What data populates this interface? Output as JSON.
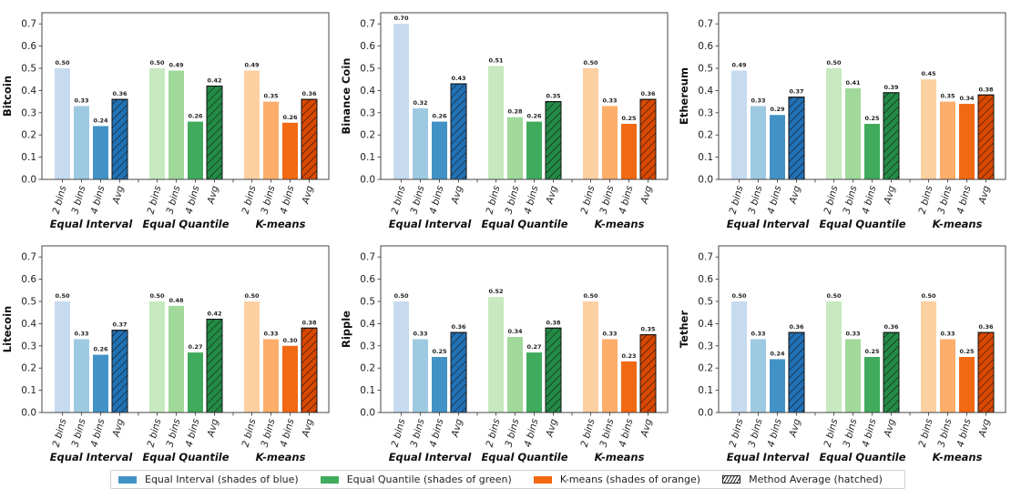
{
  "chart_data": [
    {
      "type": "bar",
      "ylabel": "Bitcoin",
      "ylim": [
        0,
        0.75
      ],
      "yticks": [
        "0.0",
        "0.1",
        "0.2",
        "0.3",
        "0.4",
        "0.5",
        "0.6",
        "0.7"
      ],
      "categories": [
        "2 bins",
        "3 bins",
        "4 bins",
        "Avg"
      ],
      "groups": [
        "Equal Interval",
        "Equal Quantile",
        "K-means"
      ],
      "series": [
        {
          "name": "Equal Interval",
          "values": [
            0.5,
            0.33,
            0.24,
            0.36
          ],
          "labels": [
            "0.50",
            "0.33",
            "0.24",
            "0.36"
          ]
        },
        {
          "name": "Equal Quantile",
          "values": [
            0.5,
            0.49,
            0.26,
            0.42
          ],
          "labels": [
            "0.50",
            "0.49",
            "0.26",
            "0.42"
          ]
        },
        {
          "name": "K-means",
          "values": [
            0.49,
            0.35,
            0.255,
            0.36
          ],
          "labels": [
            "0.49",
            "0.35",
            "0.26",
            "0.36"
          ]
        }
      ]
    },
    {
      "type": "bar",
      "ylabel": "Binance Coin",
      "ylim": [
        0,
        0.75
      ],
      "yticks": [
        "0.0",
        "0.1",
        "0.2",
        "0.3",
        "0.4",
        "0.5",
        "0.6",
        "0.7"
      ],
      "categories": [
        "2 bins",
        "3 bins",
        "4 bins",
        "Avg"
      ],
      "groups": [
        "Equal Interval",
        "Equal Quantile",
        "K-means"
      ],
      "series": [
        {
          "name": "Equal Interval",
          "values": [
            0.7,
            0.32,
            0.26,
            0.43
          ],
          "labels": [
            "0.70",
            "0.32",
            "0.26",
            "0.43"
          ]
        },
        {
          "name": "Equal Quantile",
          "values": [
            0.51,
            0.28,
            0.26,
            0.35
          ],
          "labels": [
            "0.51",
            "0.28",
            "0.26",
            "0.35"
          ]
        },
        {
          "name": "K-means",
          "values": [
            0.5,
            0.33,
            0.25,
            0.36
          ],
          "labels": [
            "0.50",
            "0.33",
            "0.25",
            "0.36"
          ]
        }
      ]
    },
    {
      "type": "bar",
      "ylabel": "Ethereum",
      "ylim": [
        0,
        0.75
      ],
      "yticks": [
        "0.0",
        "0.1",
        "0.2",
        "0.3",
        "0.4",
        "0.5",
        "0.6",
        "0.7"
      ],
      "categories": [
        "2 bins",
        "3 bins",
        "4 bins",
        "Avg"
      ],
      "groups": [
        "Equal Interval",
        "Equal Quantile",
        "K-means"
      ],
      "series": [
        {
          "name": "Equal Interval",
          "values": [
            0.49,
            0.33,
            0.29,
            0.37
          ],
          "labels": [
            "0.49",
            "0.33",
            "0.29",
            "0.37"
          ]
        },
        {
          "name": "Equal Quantile",
          "values": [
            0.5,
            0.41,
            0.25,
            0.39
          ],
          "labels": [
            "0.50",
            "0.41",
            "0.25",
            "0.39"
          ]
        },
        {
          "name": "K-means",
          "values": [
            0.45,
            0.35,
            0.34,
            0.38
          ],
          "labels": [
            "0.45",
            "0.35",
            "0.34",
            "0.38"
          ]
        }
      ]
    },
    {
      "type": "bar",
      "ylabel": "Litecoin",
      "ylim": [
        0,
        0.75
      ],
      "yticks": [
        "0.0",
        "0.1",
        "0.2",
        "0.3",
        "0.4",
        "0.5",
        "0.6",
        "0.7"
      ],
      "categories": [
        "2 bins",
        "3 bins",
        "4 bins",
        "Avg"
      ],
      "groups": [
        "Equal Interval",
        "Equal Quantile",
        "K-means"
      ],
      "series": [
        {
          "name": "Equal Interval",
          "values": [
            0.5,
            0.33,
            0.26,
            0.37
          ],
          "labels": [
            "0.50",
            "0.33",
            "0.26",
            "0.37"
          ]
        },
        {
          "name": "Equal Quantile",
          "values": [
            0.5,
            0.48,
            0.27,
            0.42
          ],
          "labels": [
            "0.50",
            "0.48",
            "0.27",
            "0.42"
          ]
        },
        {
          "name": "K-means",
          "values": [
            0.5,
            0.33,
            0.3,
            0.38
          ],
          "labels": [
            "0.50",
            "0.33",
            "0.30",
            "0.38"
          ]
        }
      ]
    },
    {
      "type": "bar",
      "ylabel": "Ripple",
      "ylim": [
        0,
        0.75
      ],
      "yticks": [
        "0.0",
        "0.1",
        "0.2",
        "0.3",
        "0.4",
        "0.5",
        "0.6",
        "0.7"
      ],
      "categories": [
        "2 bins",
        "3 bins",
        "4 bins",
        "Avg"
      ],
      "groups": [
        "Equal Interval",
        "Equal Quantile",
        "K-means"
      ],
      "series": [
        {
          "name": "Equal Interval",
          "values": [
            0.5,
            0.33,
            0.25,
            0.36
          ],
          "labels": [
            "0.50",
            "0.33",
            "0.25",
            "0.36"
          ]
        },
        {
          "name": "Equal Quantile",
          "values": [
            0.52,
            0.34,
            0.27,
            0.38
          ],
          "labels": [
            "0.52",
            "0.34",
            "0.27",
            "0.38"
          ]
        },
        {
          "name": "K-means",
          "values": [
            0.5,
            0.33,
            0.23,
            0.35
          ],
          "labels": [
            "0.50",
            "0.33",
            "0.23",
            "0.35"
          ]
        }
      ]
    },
    {
      "type": "bar",
      "ylabel": "Tether",
      "ylim": [
        0,
        0.75
      ],
      "yticks": [
        "0.0",
        "0.1",
        "0.2",
        "0.3",
        "0.4",
        "0.5",
        "0.6",
        "0.7"
      ],
      "categories": [
        "2 bins",
        "3 bins",
        "4 bins",
        "Avg"
      ],
      "groups": [
        "Equal Interval",
        "Equal Quantile",
        "K-means"
      ],
      "series": [
        {
          "name": "Equal Interval",
          "values": [
            0.5,
            0.33,
            0.24,
            0.36
          ],
          "labels": [
            "0.50",
            "0.33",
            "0.24",
            "0.36"
          ]
        },
        {
          "name": "Equal Quantile",
          "values": [
            0.5,
            0.33,
            0.25,
            0.36
          ],
          "labels": [
            "0.50",
            "0.33",
            "0.25",
            "0.36"
          ]
        },
        {
          "name": "K-means",
          "values": [
            0.5,
            0.33,
            0.25,
            0.36
          ],
          "labels": [
            "0.50",
            "0.33",
            "0.25",
            "0.36"
          ]
        }
      ]
    }
  ],
  "colors": {
    "Equal Interval": [
      "#c6dbef",
      "#9ecae1",
      "#4292c6",
      "#2171b5"
    ],
    "Equal Quantile": [
      "#c7e9c0",
      "#a1d99b",
      "#41ab5d",
      "#238b45"
    ],
    "K-means": [
      "#fdd0a2",
      "#fdae6b",
      "#f16913",
      "#d94801"
    ]
  },
  "legend": {
    "placement": "bottom-center",
    "items": [
      {
        "label": "Equal Interval (shades of blue)",
        "color": "#4292c6",
        "hatched": false
      },
      {
        "label": "Equal Quantile (shades of green)",
        "color": "#41ab5d",
        "hatched": false
      },
      {
        "label": "K-means (shades of orange)",
        "color": "#f16913",
        "hatched": false
      },
      {
        "label": "Method Average (hatched)",
        "color": "#ffffff",
        "hatched": true
      }
    ]
  }
}
